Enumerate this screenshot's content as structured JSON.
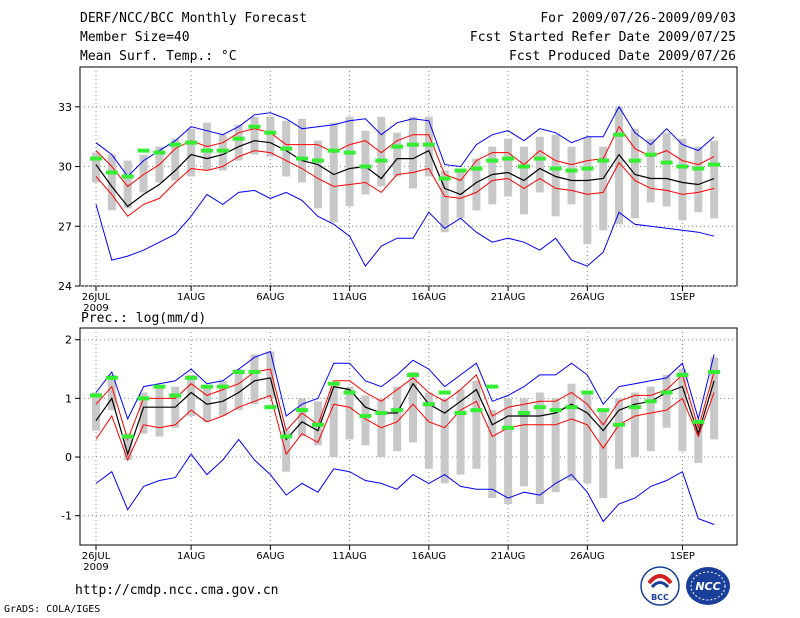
{
  "header": {
    "title": "DERF/NCC/BCC Monthly Forecast",
    "member": "Member Size=40",
    "variable": "Mean Surf. Temp.: °C",
    "period": "For 2009/07/26-2009/09/03",
    "started": "Fcst Started Refer Date 2009/07/25",
    "produced": "Fcst Produced Date 2009/07/26"
  },
  "footer": {
    "url": "http://cmdp.ncc.cma.gov.cn",
    "grads": "GrADS: COLA/IGES",
    "logo_left": "BCC",
    "logo_right": "NCC"
  },
  "colors": {
    "envelope": "#0000ff",
    "spread": "#ff0000",
    "mean": "#000000",
    "box": "#c8c8c8",
    "median": "#33ee33"
  },
  "chart_data": [
    {
      "type": "line",
      "title": "Mean Surf. Temp.: °C",
      "x_ticks": [
        "26JUL",
        "1AUG",
        "6AUG",
        "11AUG",
        "16AUG",
        "21AUG",
        "26AUG",
        "1SEP"
      ],
      "x_tick_day": [
        0,
        6,
        11,
        16,
        21,
        26,
        31,
        37
      ],
      "x_year": "2009",
      "ylim": [
        24,
        35
      ],
      "y_ticks": [
        24,
        27,
        30,
        33
      ],
      "y_tick_labels": [
        "24",
        "27",
        "30",
        "33"
      ],
      "series": [
        {
          "name": "max",
          "values": [
            31.2,
            30.6,
            29.5,
            30.3,
            30.8,
            31.3,
            32.0,
            31.8,
            31.6,
            32.0,
            32.6,
            32.7,
            32.4,
            31.9,
            32.0,
            32.1,
            32.3,
            32.4,
            31.6,
            32.2,
            32.4,
            32.3,
            30.1,
            30.0,
            31.1,
            31.6,
            31.8,
            31.3,
            31.9,
            31.7,
            31.2,
            31.5,
            31.5,
            33.0,
            31.7,
            31.1,
            31.9,
            31.1,
            30.8,
            31.5
          ]
        },
        {
          "name": "upper",
          "values": [
            30.8,
            30.0,
            29.0,
            29.6,
            30.1,
            30.9,
            31.3,
            31.0,
            31.2,
            31.7,
            31.9,
            31.7,
            31.1,
            31.1,
            31.1,
            30.7,
            31.1,
            31.3,
            30.7,
            31.3,
            31.6,
            31.6,
            29.6,
            29.3,
            30.3,
            30.7,
            30.7,
            30.1,
            30.8,
            30.3,
            30.1,
            30.3,
            30.4,
            32.0,
            30.9,
            30.5,
            30.8,
            30.3,
            30.1,
            30.5
          ]
        },
        {
          "name": "mean",
          "values": [
            30.1,
            29.0,
            28.0,
            28.6,
            29.1,
            29.8,
            30.6,
            30.4,
            30.6,
            31.0,
            31.3,
            31.2,
            30.8,
            30.3,
            30.1,
            29.6,
            29.9,
            30.0,
            29.4,
            30.4,
            30.4,
            30.8,
            28.9,
            28.6,
            29.2,
            29.6,
            29.7,
            29.3,
            29.9,
            29.5,
            29.3,
            29.3,
            29.4,
            30.6,
            29.6,
            29.4,
            29.4,
            29.2,
            29.1,
            29.4
          ]
        },
        {
          "name": "lower",
          "values": [
            29.5,
            28.6,
            27.5,
            28.1,
            28.4,
            29.2,
            29.9,
            29.8,
            30.0,
            30.5,
            30.8,
            30.7,
            30.3,
            29.9,
            29.4,
            29.0,
            29.1,
            29.2,
            28.7,
            29.6,
            29.7,
            29.9,
            28.5,
            28.4,
            28.7,
            29.3,
            29.4,
            28.9,
            29.4,
            28.9,
            28.8,
            28.6,
            28.7,
            30.2,
            29.3,
            28.9,
            28.8,
            28.6,
            28.7,
            28.9
          ]
        },
        {
          "name": "min",
          "values": [
            28.1,
            25.3,
            25.5,
            25.8,
            26.2,
            26.6,
            27.5,
            28.6,
            28.1,
            28.7,
            28.8,
            28.4,
            28.7,
            28.3,
            27.5,
            27.1,
            26.5,
            25.0,
            26.0,
            26.4,
            26.4,
            27.7,
            26.9,
            27.4,
            26.7,
            26.2,
            26.4,
            26.2,
            25.8,
            26.4,
            25.3,
            25.0,
            25.7,
            27.7,
            27.1,
            27.0,
            26.9,
            26.8,
            26.7,
            26.5
          ]
        }
      ],
      "box_top": [
        30.7,
        30.6,
        30.3,
        30.6,
        31.0,
        31.4,
        31.9,
        32.2,
        31.6,
        32.1,
        32.5,
        32.5,
        32.3,
        32.4,
        31.3,
        32.2,
        32.5,
        31.8,
        32.5,
        31.7,
        32.5,
        32.5,
        29.8,
        29.9,
        30.4,
        31.0,
        31.4,
        31.0,
        31.5,
        31.6,
        31.0,
        31.5,
        31.0,
        33.0,
        31.9,
        31.4,
        31.7,
        31.4,
        31.0,
        31.3
      ],
      "box_bottom": [
        29.2,
        27.8,
        27.9,
        28.7,
        29.2,
        29.3,
        29.5,
        29.8,
        29.8,
        30.3,
        30.6,
        30.5,
        29.5,
        29.2,
        27.9,
        27.2,
        28.0,
        28.6,
        29.0,
        29.5,
        28.9,
        29.5,
        26.7,
        27.4,
        27.8,
        28.1,
        28.5,
        27.6,
        28.7,
        27.5,
        28.1,
        26.1,
        26.8,
        27.1,
        27.4,
        28.2,
        28.0,
        27.3,
        27.7,
        27.4
      ],
      "median": [
        30.4,
        29.7,
        29.5,
        30.8,
        30.7,
        31.1,
        31.2,
        30.8,
        30.8,
        31.4,
        32.0,
        31.7,
        30.9,
        30.4,
        30.3,
        30.8,
        30.7,
        30.0,
        30.3,
        31.0,
        31.1,
        31.1,
        29.4,
        29.8,
        29.9,
        30.3,
        30.4,
        30.0,
        30.4,
        29.9,
        29.8,
        29.9,
        30.3,
        31.6,
        30.3,
        30.6,
        30.2,
        30.0,
        29.9,
        30.1
      ]
    },
    {
      "type": "line",
      "title": "Prec.: log(mm/d)",
      "x_ticks": [
        "26JUL",
        "1AUG",
        "6AUG",
        "11AUG",
        "16AUG",
        "21AUG",
        "26AUG",
        "1SEP"
      ],
      "x_tick_day": [
        0,
        6,
        11,
        16,
        21,
        26,
        31,
        37
      ],
      "x_year": "2009",
      "ylim": [
        -1.5,
        2.2
      ],
      "y_ticks": [
        -1,
        0,
        1,
        2
      ],
      "y_tick_labels": [
        "-1",
        "0",
        "1",
        "2"
      ],
      "series": [
        {
          "name": "max",
          "values": [
            1.1,
            1.45,
            0.65,
            1.2,
            1.25,
            1.3,
            1.5,
            1.25,
            1.3,
            1.5,
            1.7,
            1.8,
            0.7,
            0.9,
            1.0,
            1.6,
            1.6,
            1.3,
            1.2,
            1.4,
            1.65,
            1.5,
            1.2,
            1.4,
            1.6,
            0.95,
            1.05,
            1.2,
            1.4,
            1.4,
            1.6,
            1.4,
            0.9,
            1.2,
            1.25,
            1.3,
            1.35,
            1.6,
            0.65,
            1.75
          ]
        },
        {
          "name": "upper",
          "values": [
            0.9,
            1.2,
            0.3,
            1.0,
            1.0,
            1.0,
            1.25,
            1.05,
            1.15,
            1.25,
            1.45,
            1.5,
            0.45,
            0.75,
            0.55,
            1.3,
            1.3,
            1.1,
            0.95,
            1.15,
            1.35,
            1.1,
            0.95,
            1.15,
            1.4,
            0.7,
            0.85,
            0.9,
            0.95,
            0.95,
            1.1,
            0.9,
            0.55,
            0.95,
            1.05,
            1.05,
            1.15,
            1.4,
            0.5,
            1.45
          ]
        },
        {
          "name": "mean",
          "values": [
            0.62,
            1.0,
            0.05,
            0.85,
            0.85,
            0.85,
            1.1,
            0.9,
            0.95,
            1.1,
            1.3,
            1.35,
            0.3,
            0.6,
            0.45,
            1.2,
            1.15,
            0.85,
            0.75,
            0.75,
            1.25,
            0.9,
            0.75,
            0.95,
            1.15,
            0.55,
            0.7,
            0.7,
            0.7,
            0.75,
            0.9,
            0.75,
            0.45,
            0.8,
            0.9,
            0.95,
            1.1,
            1.2,
            0.4,
            1.3
          ]
        },
        {
          "name": "lower",
          "values": [
            0.3,
            0.7,
            -0.05,
            0.55,
            0.5,
            0.55,
            0.8,
            0.6,
            0.7,
            0.85,
            0.95,
            1.05,
            0.05,
            0.4,
            0.25,
            0.9,
            0.85,
            0.65,
            0.5,
            0.6,
            0.9,
            0.6,
            0.5,
            0.8,
            0.95,
            0.35,
            0.5,
            0.55,
            0.55,
            0.55,
            0.65,
            0.55,
            0.15,
            0.55,
            0.7,
            0.75,
            0.8,
            1.0,
            0.35,
            1.1
          ]
        },
        {
          "name": "min",
          "values": [
            -0.45,
            -0.25,
            -0.9,
            -0.5,
            -0.4,
            -0.35,
            0.05,
            -0.3,
            -0.05,
            0.3,
            -0.05,
            -0.3,
            -0.65,
            -0.45,
            -0.6,
            -0.2,
            -0.25,
            -0.4,
            -0.45,
            -0.55,
            -0.3,
            -0.45,
            -0.3,
            -0.5,
            -0.55,
            -0.55,
            -0.7,
            -0.6,
            -0.65,
            -0.45,
            -0.3,
            -0.6,
            -1.1,
            -0.8,
            -0.7,
            -0.5,
            -0.4,
            -0.25,
            -1.05,
            -1.15
          ]
        }
      ],
      "box_top": [
        1.1,
        1.4,
        0.4,
        1.1,
        1.2,
        1.2,
        1.4,
        1.2,
        1.3,
        1.5,
        1.75,
        1.8,
        0.45,
        1.0,
        0.95,
        1.2,
        1.2,
        1.05,
        1.0,
        1.2,
        1.45,
        1.1,
        1.0,
        1.15,
        1.3,
        0.8,
        1.0,
        1.0,
        1.1,
        1.0,
        1.25,
        1.1,
        0.8,
        1.0,
        1.1,
        1.2,
        1.4,
        1.5,
        0.6,
        1.7
      ],
      "box_bottom": [
        0.45,
        0.8,
        -0.05,
        0.4,
        0.35,
        0.5,
        0.7,
        0.6,
        0.7,
        0.8,
        0.9,
        1.0,
        -0.25,
        0.35,
        0.2,
        0.0,
        0.3,
        0.2,
        0.0,
        0.1,
        0.25,
        -0.2,
        -0.45,
        -0.3,
        -0.2,
        -0.7,
        -0.8,
        -0.5,
        -0.8,
        -0.6,
        -0.4,
        -0.45,
        -0.7,
        -0.2,
        0.0,
        0.1,
        0.5,
        0.1,
        -0.1,
        0.3
      ],
      "median": [
        1.05,
        1.35,
        0.35,
        1.0,
        1.2,
        1.05,
        1.35,
        1.2,
        1.2,
        1.45,
        1.45,
        0.85,
        0.35,
        0.8,
        0.55,
        1.25,
        1.1,
        0.7,
        0.75,
        0.8,
        1.4,
        0.9,
        1.1,
        0.75,
        0.8,
        1.2,
        0.5,
        0.75,
        0.85,
        0.8,
        0.85,
        1.1,
        0.8,
        0.55,
        0.85,
        0.95,
        1.1,
        1.4,
        0.6,
        1.45
      ]
    }
  ]
}
